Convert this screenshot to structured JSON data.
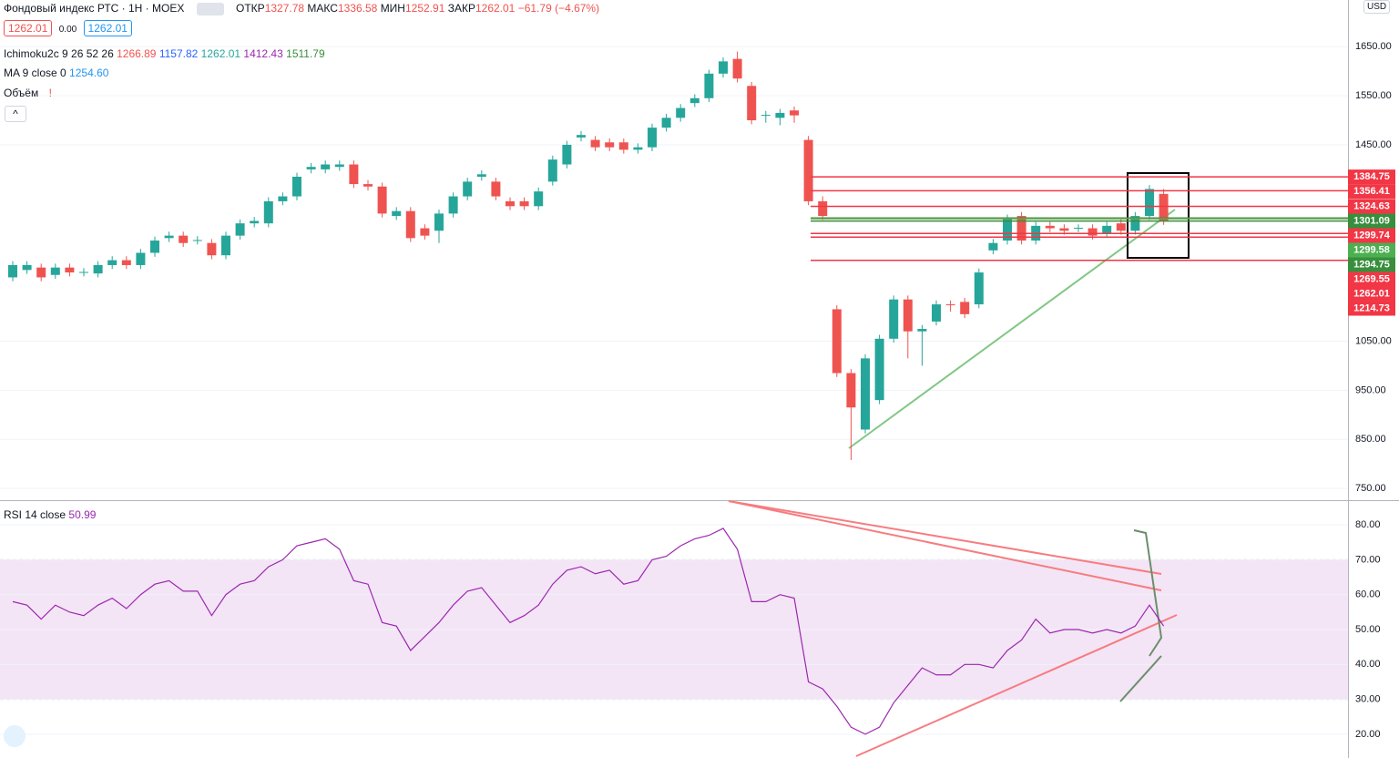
{
  "header": {
    "title": "Фондовый индекс РТС · 1Н · MOEX",
    "open_label": "ОТКР",
    "open": "1327.78",
    "high_label": "МАКС",
    "high": "1336.58",
    "low_label": "МИН",
    "low": "1252.91",
    "close_label": "ЗАКР",
    "close": "1262.01",
    "change": "−61.79 (−4.67%)",
    "bid": "1262.01",
    "spread": "0.00",
    "ask": "1262.01",
    "ichimoku_label": "Ichimoku2c 9 26 52 26",
    "ichimoku_values": [
      "1266.89",
      "1157.82",
      "1262.01",
      "1412.43",
      "1511.79"
    ],
    "ma_label": "MA 9 close 0",
    "ma_value": "1254.60",
    "volume_label": "Объём",
    "currency": "USD",
    "rsi_label": "RSI 14 close",
    "rsi_value": "50.99"
  },
  "chart_data": [
    {
      "type": "candlestick",
      "up_color": "#26a69a",
      "down_color": "#ef5350",
      "open": [
        1180,
        1195,
        1200,
        1185,
        1200,
        1190,
        1188,
        1205,
        1215,
        1205,
        1230,
        1260,
        1265,
        1255,
        1250,
        1225,
        1265,
        1290,
        1290,
        1335,
        1345,
        1400,
        1400,
        1405,
        1410,
        1370,
        1365,
        1305,
        1315,
        1280,
        1275,
        1310,
        1345,
        1385,
        1375,
        1335,
        1335,
        1325,
        1375,
        1410,
        1465,
        1460,
        1455,
        1455,
        1440,
        1445,
        1485,
        1505,
        1535,
        1545,
        1595,
        1625,
        1570,
        1510,
        1505,
        1520,
        1460,
        1335,
        1115,
        985,
        870,
        930,
        1055,
        1135,
        1070,
        1090,
        1125,
        1130,
        1125,
        1235,
        1255,
        1305,
        1255,
        1285,
        1280,
        1280,
        1280,
        1270,
        1290,
        1275,
        1305,
        1350
      ],
      "high": [
        1213,
        1213,
        1208,
        1208,
        1208,
        1199,
        1213,
        1223,
        1223,
        1238,
        1263,
        1273,
        1273,
        1264,
        1258,
        1273,
        1298,
        1303,
        1343,
        1353,
        1393,
        1413,
        1418,
        1418,
        1418,
        1378,
        1373,
        1323,
        1323,
        1288,
        1318,
        1353,
        1383,
        1398,
        1383,
        1343,
        1343,
        1363,
        1428,
        1458,
        1478,
        1468,
        1463,
        1463,
        1453,
        1493,
        1513,
        1533,
        1553,
        1603,
        1628,
        1640,
        1578,
        1519,
        1523,
        1528,
        1468,
        1345,
        1123,
        993,
        1023,
        1063,
        1143,
        1143,
        1083,
        1133,
        1133,
        1138,
        1198,
        1258,
        1308,
        1313,
        1293,
        1293,
        1288,
        1288,
        1288,
        1293,
        1298,
        1313,
        1368,
        1360
      ],
      "low": [
        1172,
        1187,
        1172,
        1177,
        1182,
        1182,
        1180,
        1197,
        1197,
        1197,
        1222,
        1252,
        1242,
        1247,
        1217,
        1217,
        1257,
        1282,
        1282,
        1327,
        1337,
        1392,
        1392,
        1397,
        1362,
        1357,
        1302,
        1297,
        1252,
        1257,
        1250,
        1302,
        1337,
        1377,
        1337,
        1317,
        1317,
        1317,
        1367,
        1402,
        1457,
        1437,
        1437,
        1432,
        1432,
        1437,
        1477,
        1497,
        1527,
        1537,
        1587,
        1577,
        1492,
        1495,
        1490,
        1495,
        1327,
        1297,
        977,
        808,
        862,
        922,
        1047,
        1015,
        1000,
        1082,
        1110,
        1097,
        1117,
        1227,
        1247,
        1247,
        1247,
        1272,
        1267,
        1272,
        1257,
        1262,
        1267,
        1267,
        1297,
        1287
      ],
      "close": [
        1205,
        1205,
        1180,
        1200,
        1190,
        1191,
        1205,
        1215,
        1205,
        1230,
        1255,
        1265,
        1250,
        1256,
        1225,
        1265,
        1290,
        1295,
        1335,
        1345,
        1385,
        1405,
        1410,
        1410,
        1370,
        1365,
        1310,
        1315,
        1260,
        1265,
        1310,
        1345,
        1375,
        1390,
        1345,
        1325,
        1325,
        1355,
        1420,
        1450,
        1470,
        1445,
        1445,
        1440,
        1445,
        1485,
        1505,
        1525,
        1545,
        1595,
        1620,
        1585,
        1500,
        1511,
        1515,
        1510,
        1335,
        1305,
        985,
        915,
        1015,
        1055,
        1135,
        1070,
        1075,
        1125,
        1124,
        1105,
        1190,
        1250,
        1300,
        1255,
        1285,
        1280,
        1275,
        1281,
        1265,
        1285,
        1275,
        1305,
        1360,
        1295
      ],
      "ylim": [
        728,
        1745
      ],
      "yticks": [
        {
          "value": 1650,
          "label": "1650.00"
        },
        {
          "value": 1550,
          "label": "1550.00"
        },
        {
          "value": 1450,
          "label": "1450.00"
        },
        {
          "value": 1050,
          "label": "1050.00"
        },
        {
          "value": 950,
          "label": "950.00"
        },
        {
          "value": 850,
          "label": "850.00"
        },
        {
          "value": 750,
          "label": "750.00"
        }
      ],
      "grid": true,
      "levels": [
        {
          "value": 1384.75,
          "color": "#f23645"
        },
        {
          "value": 1356.41,
          "color": "#f23645"
        },
        {
          "value": 1324.63,
          "color": "#f23645"
        },
        {
          "value": 1301.09,
          "color": "#388e3c"
        },
        {
          "value": 1299.74,
          "color": "#f23645"
        },
        {
          "value": 1299.58,
          "color": "#4caf50"
        },
        {
          "value": 1294.75,
          "color": "#388e3c"
        },
        {
          "value": 1269.55,
          "color": "#f23645"
        },
        {
          "value": 1262.01,
          "color": "#f23645"
        },
        {
          "value": 1214.73,
          "color": "#f23645"
        }
      ]
    },
    {
      "type": "line",
      "color": "#9c27b0",
      "values": [
        58,
        57,
        53,
        57,
        55,
        54,
        57,
        59,
        56,
        60,
        63,
        64,
        61,
        61,
        54,
        60,
        63,
        64,
        68,
        70,
        74,
        75,
        76,
        73,
        64,
        63,
        52,
        51,
        44,
        48,
        52,
        57,
        61,
        62,
        57,
        52,
        54,
        57,
        63,
        67,
        68,
        66,
        67,
        63,
        64,
        70,
        71,
        74,
        76,
        77,
        79,
        73,
        58,
        58,
        60,
        59,
        35,
        33,
        28,
        22,
        20,
        22,
        29,
        34,
        39,
        37,
        37,
        40,
        40,
        39,
        44,
        47,
        53,
        49,
        50,
        50,
        49,
        50,
        49,
        51,
        57,
        51
      ],
      "ylim": [
        13.7,
        86.3
      ],
      "yticks": [
        {
          "value": 80,
          "label": "80.00"
        },
        {
          "value": 70,
          "label": "70.00"
        },
        {
          "value": 60,
          "label": "60.00"
        },
        {
          "value": 50,
          "label": "50.00"
        },
        {
          "value": 40,
          "label": "40.00"
        },
        {
          "value": 30,
          "label": "30.00"
        },
        {
          "value": 20,
          "label": "20.00"
        }
      ],
      "band": [
        30,
        70
      ],
      "band_color": "#f3e5f5",
      "grid": true
    }
  ]
}
